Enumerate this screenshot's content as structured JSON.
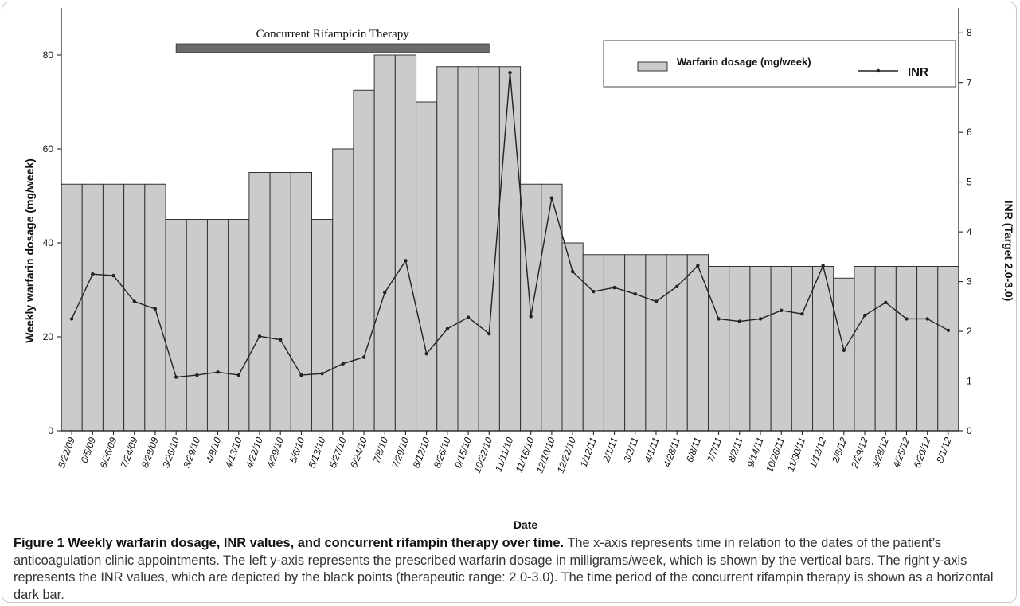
{
  "chart_data": {
    "type": "bar+line",
    "x_label": "Date",
    "y_left_label": "Weekly  warfarin dosage (mg/week)",
    "y_right_label": "INR (Target 2.0-3.0)",
    "y_left_range": [
      0,
      90
    ],
    "y_right_range": [
      0,
      8.5
    ],
    "y_left_ticks": [
      0,
      20,
      40,
      60,
      80
    ],
    "y_right_ticks": [
      0,
      1,
      2,
      3,
      4,
      5,
      6,
      7,
      8
    ],
    "categories": [
      "5/22/09",
      "6/5/09",
      "6/26/09",
      "7/24/09",
      "8/28/09",
      "3/26/10",
      "3/29/10",
      "4/8/10",
      "4/13/10",
      "4/22/10",
      "4/29/10",
      "5/6/10",
      "5/13/10",
      "5/27/10",
      "6/24/10",
      "7/8/10",
      "7/29/10",
      "8/12/10",
      "8/26/10",
      "9/15/10",
      "10/22/10",
      "11/11/10",
      "11/16/10",
      "12/10/10",
      "12/22/10",
      "1/12/11",
      "2/1/11",
      "3/2/11",
      "4/1/11",
      "4/28/11",
      "6/8/11",
      "7/7/11",
      "8/2/11",
      "9/14/11",
      "10/26/11",
      "11/30/11",
      "1/12/12",
      "2/8/12",
      "2/29/12",
      "3/28/12",
      "4/25/12",
      "6/20/12",
      "8/1/12"
    ],
    "series": [
      {
        "name": "Warfarin dosage (mg/week)",
        "type": "bar",
        "axis": "left",
        "values": [
          52.5,
          52.5,
          52.5,
          52.5,
          52.5,
          45,
          45,
          45,
          45,
          55,
          55,
          55,
          45,
          60,
          72.5,
          80,
          80,
          70,
          77.5,
          77.5,
          77.5,
          77.5,
          52.5,
          52.5,
          40,
          37.5,
          37.5,
          37.5,
          37.5,
          37.5,
          37.5,
          35,
          35,
          35,
          35,
          35,
          35,
          32.5,
          35,
          35,
          35,
          35,
          35
        ]
      },
      {
        "name": "INR",
        "type": "line",
        "axis": "right",
        "values": [
          2.25,
          3.15,
          3.12,
          2.6,
          2.45,
          1.08,
          1.12,
          1.18,
          1.12,
          1.9,
          1.83,
          1.12,
          1.15,
          1.35,
          1.48,
          2.78,
          3.42,
          1.55,
          2.05,
          2.28,
          1.95,
          7.2,
          2.3,
          4.68,
          3.2,
          2.8,
          2.88,
          2.75,
          2.6,
          2.9,
          3.32,
          2.25,
          2.2,
          2.25,
          2.42,
          2.35,
          3.32,
          1.62,
          2.32,
          2.58,
          2.25,
          2.25,
          2.02
        ]
      }
    ],
    "annotation": {
      "label": "Concurrent Rifampicin Therapy",
      "start_index": 5,
      "end_index": 20
    },
    "legend_position": "top-right",
    "grid": false
  },
  "colors": {
    "bar_fill": "#cbcbcb",
    "bar_stroke": "#333333",
    "line": "#222222",
    "rifampicin_bar": "#6b6b6b",
    "axis": "#111111"
  },
  "caption": {
    "title": "Figure 1 Weekly warfarin dosage, INR values, and concurrent rifampin therapy over time.",
    "text": "The x-axis represents time in relation to the dates of the patient’s anticoagulation clinic appointments. The left y-axis represents the prescribed warfarin dosage in milligrams/week, which is shown by the vertical bars. The right y-axis represents the INR values, which are depicted by the black points (therapeutic range: 2.0-3.0). The time period of the concurrent rifampin therapy is shown as a horizontal dark bar."
  }
}
